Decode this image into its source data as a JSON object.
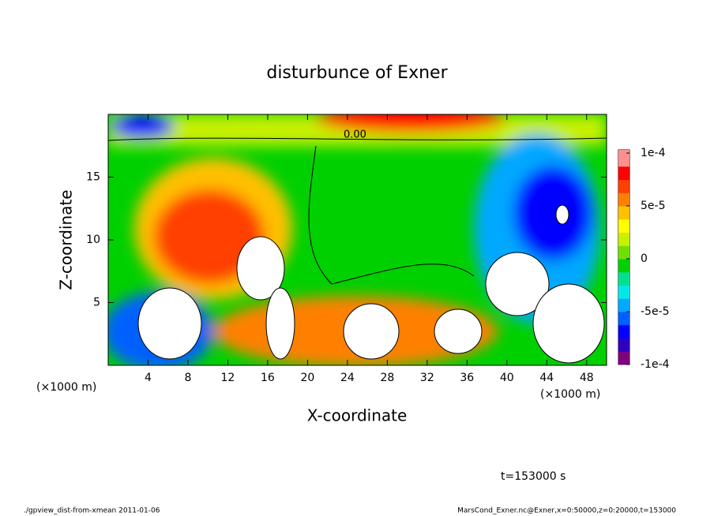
{
  "chart_data": {
    "type": "contour",
    "title": "disturbunce of Exner",
    "x_label": "X-coordinate",
    "y_label": "Z-coordinate",
    "x_unit": "(×1000 m)",
    "y_unit": "(×1000 m)",
    "xlim": [
      0,
      50
    ],
    "ylim": [
      0,
      20
    ],
    "xticks": [
      4,
      8,
      12,
      16,
      20,
      24,
      28,
      32,
      36,
      40,
      44,
      48
    ],
    "yticks": [
      5,
      10,
      15
    ],
    "clim": [
      -0.0001,
      0.0001
    ],
    "cticks": [
      {
        "value": 0.0001,
        "label": "1e-4"
      },
      {
        "value": 5e-05,
        "label": "5e-5"
      },
      0,
      {
        "value": -5e-05,
        "label": "-5e-5"
      },
      {
        "value": -0.0001,
        "label": "-1e-4"
      }
    ],
    "colormap": [
      "#800080",
      "#3000c0",
      "#0000ff",
      "#0060ff",
      "#00a8ff",
      "#00e8e8",
      "#00e090",
      "#00d000",
      "#70e000",
      "#c8f000",
      "#ffff00",
      "#ffc000",
      "#ff8000",
      "#ff4000",
      "#ff0000",
      "#ff9090"
    ],
    "contour_label": "0.00",
    "time_label": "t=153000 s",
    "footer_left": "./gpview_dist-from-xmean  2011-01-06",
    "footer_right": "MarsCond_Exner.nc@Exner,x=0:50000,z=0:20000,t=153000"
  }
}
